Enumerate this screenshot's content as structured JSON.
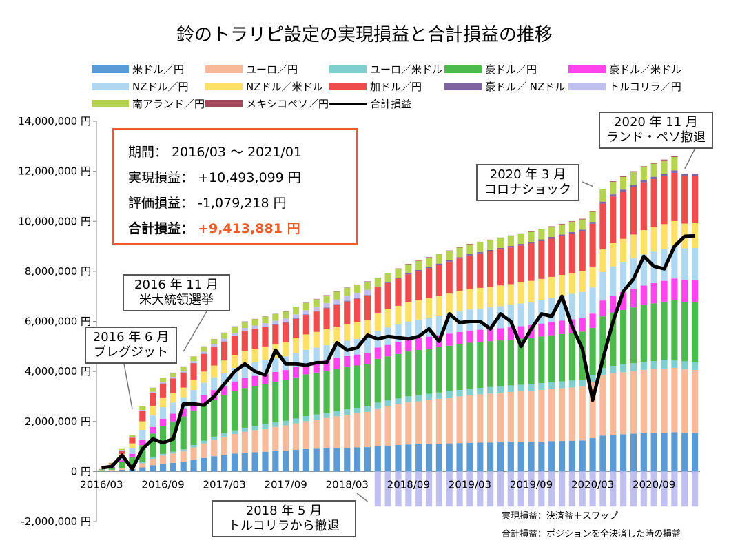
{
  "title": "鈴のトラリピ設定の実現損益と合計損益の推移",
  "summary": {
    "period_label": "期間：",
    "period_value": "2016/03 〜 2021/01",
    "realized_label": "実現損益：",
    "realized_value": "+10,493,099 円",
    "unrealized_label": "評価損益：",
    "unrealized_value": "-1,079,218 円",
    "total_label": "合計損益：",
    "total_value": "+9,413,881 円",
    "accent_color": "#f05a28"
  },
  "callouts": [
    {
      "line1": "2016 年 6 月",
      "line2": "ブレグジット"
    },
    {
      "line1": "2016 年 11 月",
      "line2": "米大統領選挙"
    },
    {
      "line1": "2020 年 3 月",
      "line2": "コロナショック"
    },
    {
      "line1": "2020 年 11 月",
      "line2": "ランド・ペソ撤退"
    },
    {
      "line1": "2018 年 5 月",
      "line2": "トルコリラから撤退"
    }
  ],
  "notes": {
    "note1": "実現損益：決済益＋スワップ",
    "note2": "合計損益：ポジションを全決済した時の損益"
  },
  "chart_data": {
    "type": "bar",
    "stacked": true,
    "overlay_line": "合計損益",
    "yunit": "円",
    "ylim": [
      -2000000,
      14000000
    ],
    "yticks": [
      "14,000,000 円",
      "12,000,000 円",
      "10,000,000 円",
      "8,000,000 円",
      "6,000,000 円",
      "4,000,000 円",
      "2,000,000 円",
      "0 円",
      "-2,000,000 円"
    ],
    "ytick_values": [
      14000000,
      12000000,
      10000000,
      8000000,
      6000000,
      4000000,
      2000000,
      0,
      -2000000
    ],
    "xtick_labels": [
      "2016/03",
      "2016/09",
      "2017/03",
      "2017/09",
      "2018/03",
      "2018/09",
      "2019/03",
      "2019/09",
      "2020/03",
      "2020/09"
    ],
    "months_start": "2016/03",
    "month_count": 59,
    "grid": false,
    "legend_position": "top",
    "series": [
      {
        "name": "米ドル／円",
        "color": "#5b9bd5"
      },
      {
        "name": "ユーロ／円",
        "color": "#f8b999"
      },
      {
        "name": "ユーロ／米ドル",
        "color": "#7fcfcf"
      },
      {
        "name": "豪ドル／円",
        "color": "#4cba4c"
      },
      {
        "name": "豪ドル／米ドル",
        "color": "#ff44ee"
      },
      {
        "name": "NZドル／円",
        "color": "#aed7f2"
      },
      {
        "name": "NZドル／米ドル",
        "color": "#ffe066"
      },
      {
        "name": "加ドル／円",
        "color": "#ef4d4d"
      },
      {
        "name": "豪ドル／ NZドル",
        "color": "#8064a2"
      },
      {
        "name": "トルコリラ／円",
        "color": "#c0c0f0"
      },
      {
        "name": "南アランド／円",
        "color": "#b5d34f"
      },
      {
        "name": "メキシコペソ／円",
        "color": "#a24a5c"
      }
    ],
    "line_name": "合計損益",
    "line_color": "#000000",
    "realized_total_anchors": [
      [
        0,
        100000
      ],
      [
        1,
        350000
      ],
      [
        2,
        900000
      ],
      [
        3,
        1450000
      ],
      [
        4,
        2600000
      ],
      [
        5,
        3350000
      ],
      [
        6,
        3750000
      ],
      [
        7,
        3950000
      ],
      [
        8,
        4200000
      ],
      [
        9,
        4600000
      ],
      [
        10,
        5000000
      ],
      [
        11,
        5300000
      ],
      [
        12,
        5550000
      ],
      [
        13,
        5800000
      ],
      [
        14,
        6000000
      ],
      [
        18,
        6400000
      ],
      [
        20,
        6750000
      ],
      [
        24,
        7350000
      ],
      [
        26,
        7600000
      ],
      [
        27,
        7750000
      ],
      [
        30,
        8300000
      ],
      [
        36,
        9100000
      ],
      [
        42,
        9600000
      ],
      [
        47,
        10100000
      ],
      [
        48,
        10400000
      ],
      [
        49,
        11300000
      ],
      [
        50,
        11600000
      ],
      [
        53,
        12200000
      ],
      [
        56,
        12600000
      ],
      [
        57,
        11900000
      ],
      [
        58,
        11900000
      ]
    ],
    "component_anchors": {
      "米ドル／円": [
        [
          0,
          30000
        ],
        [
          4,
          120000
        ],
        [
          8,
          350000
        ],
        [
          12,
          580000
        ],
        [
          20,
          800000
        ],
        [
          30,
          960000
        ],
        [
          40,
          1120000
        ],
        [
          47,
          1260000
        ],
        [
          48,
          1400000
        ],
        [
          58,
          1560000
        ]
      ],
      "ユーロ／円": [
        [
          0,
          20000
        ],
        [
          4,
          120000
        ],
        [
          8,
          380000
        ],
        [
          12,
          620000
        ],
        [
          20,
          1000000
        ],
        [
          30,
          1500000
        ],
        [
          40,
          1920000
        ],
        [
          47,
          2180000
        ],
        [
          48,
          2350000
        ],
        [
          58,
          2550000
        ]
      ],
      "ユーロ／米ドル": [
        [
          0,
          5000
        ],
        [
          4,
          30000
        ],
        [
          12,
          120000
        ],
        [
          20,
          180000
        ],
        [
          30,
          220000
        ],
        [
          40,
          250000
        ],
        [
          48,
          290000
        ],
        [
          58,
          330000
        ]
      ],
      "豪ドル／円": [
        [
          0,
          20000
        ],
        [
          4,
          500000
        ],
        [
          8,
          1200000
        ],
        [
          12,
          1300000
        ],
        [
          20,
          1500000
        ],
        [
          30,
          1600000
        ],
        [
          40,
          1750000
        ],
        [
          47,
          1950000
        ],
        [
          48,
          2000000
        ],
        [
          58,
          2400000
        ]
      ],
      "豪ドル／米ドル": [
        [
          0,
          5000
        ],
        [
          4,
          150000
        ],
        [
          8,
          300000
        ],
        [
          12,
          330000
        ],
        [
          20,
          380000
        ],
        [
          30,
          420000
        ],
        [
          40,
          470000
        ],
        [
          47,
          560000
        ],
        [
          48,
          600000
        ],
        [
          58,
          900000
        ]
      ],
      "NZドル／円": [
        [
          0,
          5000
        ],
        [
          4,
          300000
        ],
        [
          8,
          400000
        ],
        [
          12,
          450000
        ],
        [
          20,
          500000
        ],
        [
          30,
          650000
        ],
        [
          40,
          850000
        ],
        [
          47,
          1050000
        ],
        [
          48,
          1100000
        ],
        [
          58,
          1300000
        ]
      ],
      "NZドル／米ドル": [
        [
          0,
          5000
        ],
        [
          4,
          250000
        ],
        [
          8,
          350000
        ],
        [
          12,
          420000
        ],
        [
          20,
          550000
        ],
        [
          30,
          680000
        ],
        [
          40,
          800000
        ],
        [
          47,
          850000
        ],
        [
          48,
          880000
        ],
        [
          58,
          1000000
        ]
      ],
      "加ドル／円": [
        [
          0,
          5000
        ],
        [
          4,
          300000
        ],
        [
          8,
          550000
        ],
        [
          12,
          650000
        ],
        [
          20,
          700000
        ],
        [
          30,
          1000000
        ],
        [
          40,
          1400000
        ],
        [
          47,
          1600000
        ],
        [
          48,
          1800000
        ],
        [
          58,
          1900000
        ]
      ],
      "豪ドル／ NZドル": [
        [
          0,
          0
        ],
        [
          20,
          20000
        ],
        [
          40,
          60000
        ],
        [
          58,
          100000
        ]
      ],
      "トルコリラ／円": [
        [
          0,
          0
        ],
        [
          4,
          30000
        ],
        [
          12,
          90000
        ],
        [
          20,
          150000
        ],
        [
          26,
          200000
        ],
        [
          27,
          0
        ],
        [
          58,
          0
        ]
      ],
      "南アランド／円": [
        [
          0,
          0
        ],
        [
          4,
          100000
        ],
        [
          12,
          200000
        ],
        [
          20,
          260000
        ],
        [
          30,
          320000
        ],
        [
          40,
          380000
        ],
        [
          48,
          420000
        ],
        [
          49,
          480000
        ],
        [
          56,
          520000
        ],
        [
          57,
          0
        ],
        [
          58,
          0
        ]
      ],
      "メキシコペソ／円": [
        [
          0,
          0
        ],
        [
          20,
          10000
        ],
        [
          40,
          20000
        ],
        [
          56,
          30000
        ],
        [
          57,
          0
        ],
        [
          58,
          0
        ]
      ]
    },
    "turkish_lira_loss": -1400000,
    "turkish_lira_loss_start_index": 27,
    "total_line": [
      [
        0,
        150000
      ],
      [
        1,
        200000
      ],
      [
        2,
        650000
      ],
      [
        3,
        100000
      ],
      [
        4,
        900000
      ],
      [
        5,
        1300000
      ],
      [
        6,
        1150000
      ],
      [
        7,
        1300000
      ],
      [
        8,
        2700000
      ],
      [
        9,
        2700000
      ],
      [
        10,
        2650000
      ],
      [
        11,
        3000000
      ],
      [
        12,
        3500000
      ],
      [
        13,
        4000000
      ],
      [
        14,
        4300000
      ],
      [
        15,
        4000000
      ],
      [
        16,
        3850000
      ],
      [
        17,
        4850000
      ],
      [
        18,
        4300000
      ],
      [
        19,
        4300000
      ],
      [
        20,
        4250000
      ],
      [
        21,
        4350000
      ],
      [
        22,
        4350000
      ],
      [
        23,
        5150000
      ],
      [
        24,
        4850000
      ],
      [
        25,
        4950000
      ],
      [
        26,
        5450000
      ],
      [
        27,
        5300000
      ],
      [
        28,
        5400000
      ],
      [
        29,
        5350000
      ],
      [
        30,
        5300000
      ],
      [
        31,
        5400000
      ],
      [
        32,
        5700000
      ],
      [
        33,
        5200000
      ],
      [
        34,
        6300000
      ],
      [
        35,
        5950000
      ],
      [
        36,
        6000000
      ],
      [
        37,
        6000000
      ],
      [
        38,
        5700000
      ],
      [
        39,
        6300000
      ],
      [
        40,
        6000000
      ],
      [
        41,
        5000000
      ],
      [
        42,
        5700000
      ],
      [
        43,
        6300000
      ],
      [
        44,
        6200000
      ],
      [
        45,
        7000000
      ],
      [
        46,
        5800000
      ],
      [
        47,
        4900000
      ],
      [
        48,
        2850000
      ],
      [
        49,
        4500000
      ],
      [
        50,
        6000000
      ],
      [
        51,
        7200000
      ],
      [
        52,
        7700000
      ],
      [
        53,
        8600000
      ],
      [
        54,
        8200000
      ],
      [
        55,
        8100000
      ],
      [
        56,
        9000000
      ],
      [
        57,
        9400000
      ],
      [
        58,
        9420000
      ]
    ]
  }
}
